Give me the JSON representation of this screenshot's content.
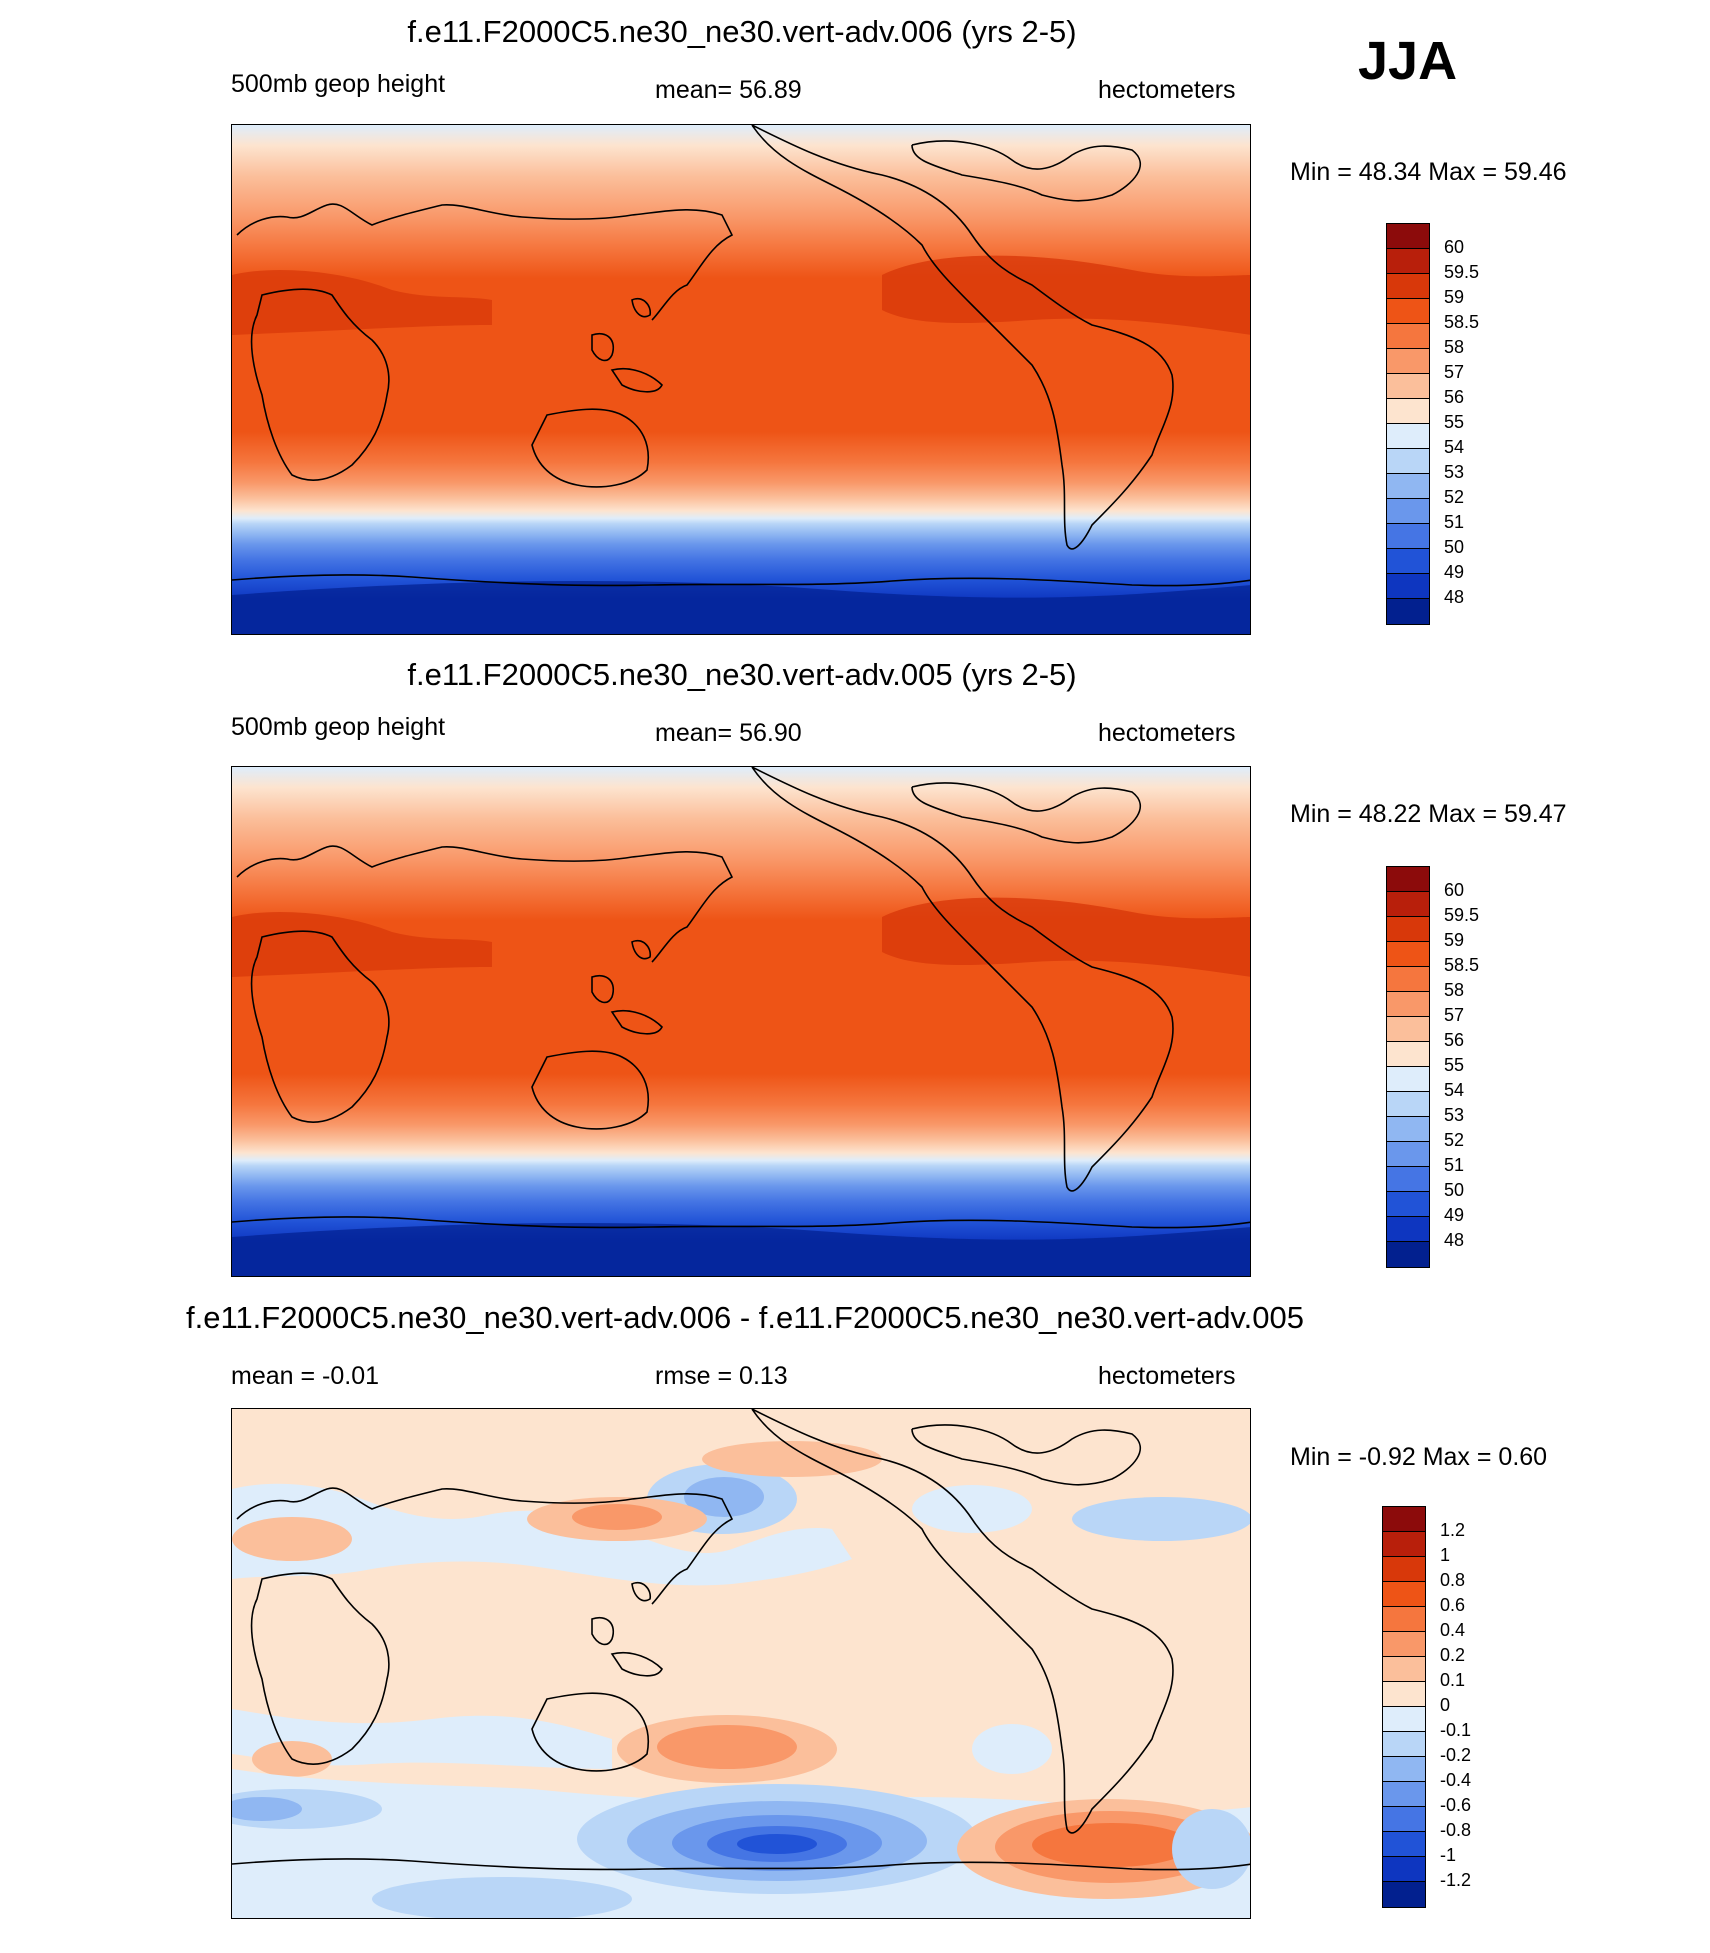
{
  "season": "JJA",
  "panels": [
    {
      "title": "f.e11.F2000C5.ne30_ne30.vert-adv.006 (yrs 2-5)",
      "left_label": "500mb geop height",
      "center_label": "mean=  56.89",
      "right_label": "hectometers",
      "minmax": "Min =  48.34 Max =  59.46"
    },
    {
      "title": "f.e11.F2000C5.ne30_ne30.vert-adv.005 (yrs 2-5)",
      "left_label": "500mb geop height",
      "center_label": "mean=  56.90",
      "right_label": "hectometers",
      "minmax": "Min =  48.22 Max =  59.47"
    },
    {
      "title": "f.e11.F2000C5.ne30_ne30.vert-adv.006 - f.e11.F2000C5.ne30_ne30.vert-adv.005",
      "left_label": "mean =  -0.01",
      "center_label": "rmse =   0.13",
      "right_label": "hectometers",
      "minmax": "Min =  -0.92 Max =   0.60"
    }
  ],
  "colorbars": {
    "field": {
      "labels": [
        "60",
        "59.5",
        "59",
        "58.5",
        "58",
        "57",
        "56",
        "55",
        "54",
        "53",
        "52",
        "51",
        "50",
        "49",
        "48"
      ],
      "colors": [
        "#8c0b0b",
        "#b81f0b",
        "#d8380a",
        "#ee5416",
        "#f5763e",
        "#f99869",
        "#fbbf9b",
        "#fde4cf",
        "#deedfb",
        "#b9d6f7",
        "#90b7f2",
        "#6a97ec",
        "#4575e4",
        "#2153d7",
        "#0e36c0",
        "#02208f"
      ]
    },
    "diff": {
      "labels": [
        "1.2",
        "1",
        "0.8",
        "0.6",
        "0.4",
        "0.2",
        "0.1",
        "0",
        "-0.1",
        "-0.2",
        "-0.4",
        "-0.6",
        "-0.8",
        "-1",
        "-1.2"
      ],
      "colors": [
        "#8c0b0b",
        "#b81f0b",
        "#d8380a",
        "#ee5416",
        "#f5763e",
        "#f99869",
        "#fbbf9b",
        "#fde4cf",
        "#deedfb",
        "#b9d6f7",
        "#90b7f2",
        "#6a97ec",
        "#4575e4",
        "#2153d7",
        "#0e36c0",
        "#02208f"
      ]
    }
  },
  "chart_data": [
    {
      "type": "heatmap",
      "title": "f.e11.F2000C5.ne30_ne30.vert-adv.006 (yrs 2-5)",
      "variable": "500mb geop height",
      "units": "hectometers",
      "mean": 56.89,
      "min": 48.34,
      "max": 59.46,
      "contour_levels": [
        48,
        49,
        50,
        51,
        52,
        53,
        54,
        55,
        56,
        57,
        58,
        58.5,
        59,
        59.5,
        60
      ],
      "zonal_profile_value": [
        {
          "band": "far north edge",
          "value": 54.5
        },
        {
          "band": "northern high latitudes",
          "value": 55.5
        },
        {
          "band": "northern mid-high latitudes",
          "value": 56.5
        },
        {
          "band": "northern mid latitudes",
          "value": 57.5
        },
        {
          "band": "northern subtropics",
          "value": 58.7
        },
        {
          "band": "tropics",
          "value": 58.7
        },
        {
          "band": "southern subtropics",
          "value": 57.5
        },
        {
          "band": "southern mid latitudes",
          "value": 55.0
        },
        {
          "band": "southern high latitudes",
          "value": 51.0
        },
        {
          "band": "antarctic",
          "value": 48.5
        }
      ]
    },
    {
      "type": "heatmap",
      "title": "f.e11.F2000C5.ne30_ne30.vert-adv.005 (yrs 2-5)",
      "variable": "500mb geop height",
      "units": "hectometers",
      "mean": 56.9,
      "min": 48.22,
      "max": 59.47,
      "contour_levels": [
        48,
        49,
        50,
        51,
        52,
        53,
        54,
        55,
        56,
        57,
        58,
        58.5,
        59,
        59.5,
        60
      ],
      "zonal_profile_value": [
        {
          "band": "far north edge",
          "value": 54.5
        },
        {
          "band": "northern high latitudes",
          "value": 55.5
        },
        {
          "band": "northern mid-high latitudes",
          "value": 56.5
        },
        {
          "band": "northern mid latitudes",
          "value": 57.5
        },
        {
          "band": "northern subtropics",
          "value": 58.7
        },
        {
          "band": "tropics",
          "value": 58.7
        },
        {
          "band": "southern subtropics",
          "value": 57.5
        },
        {
          "band": "southern mid latitudes",
          "value": 55.0
        },
        {
          "band": "southern high latitudes",
          "value": 51.0
        },
        {
          "band": "antarctic",
          "value": 48.5
        }
      ]
    },
    {
      "type": "heatmap",
      "title": "f.e11.F2000C5.ne30_ne30.vert-adv.006 - f.e11.F2000C5.ne30_ne30.vert-adv.005",
      "units": "hectometers",
      "mean": -0.01,
      "rmse": 0.13,
      "min": -0.92,
      "max": 0.6,
      "contour_levels": [
        -1.2,
        -1,
        -0.8,
        -0.6,
        -0.4,
        -0.2,
        -0.1,
        0,
        0.1,
        0.2,
        0.4,
        0.6,
        0.8,
        1,
        1.2
      ]
    }
  ]
}
